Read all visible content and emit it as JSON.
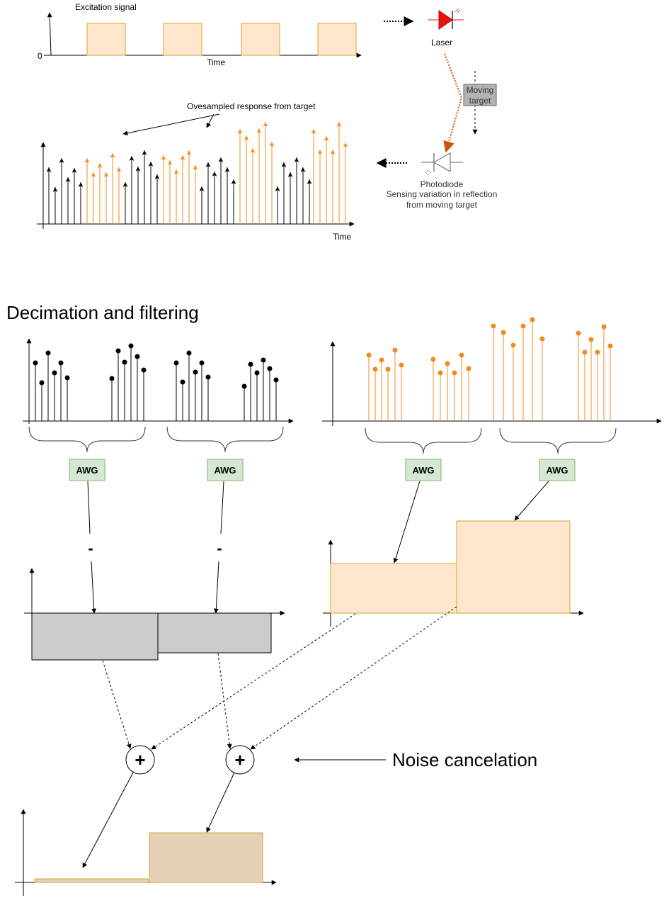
{
  "labels": {
    "excitation_signal": "Excitation signal",
    "zero": "0",
    "time_top": "Time",
    "laser": "Laser",
    "moving_target_1": "Moving",
    "moving_target_2": "target",
    "oversampled_response": "Ovesampled response from target",
    "time_response": "Time",
    "photodiode": "Photodiode",
    "sensing_1": "Sensing variation in reflection",
    "sensing_2": "from moving target",
    "decimation_title": "Decimation and filtering",
    "awg": "AWG",
    "minus": "-",
    "plus": "+",
    "noise_cancelation": "Noise cancelation"
  },
  "colors": {
    "orange": "#f08c1e",
    "orange_fill": "#ffe6cc",
    "orange_stroke": "#d6a52c",
    "black": "#000000",
    "gray_fill": "#cccccc",
    "green_fill": "#d5e8d4",
    "green_stroke": "#82b366",
    "laser_red": "#e3140f",
    "result_fill": "#e6d0b8",
    "target_fill": "#b3b3b3"
  },
  "icons": [
    "laser-diode-icon",
    "photodiode-icon"
  ]
}
